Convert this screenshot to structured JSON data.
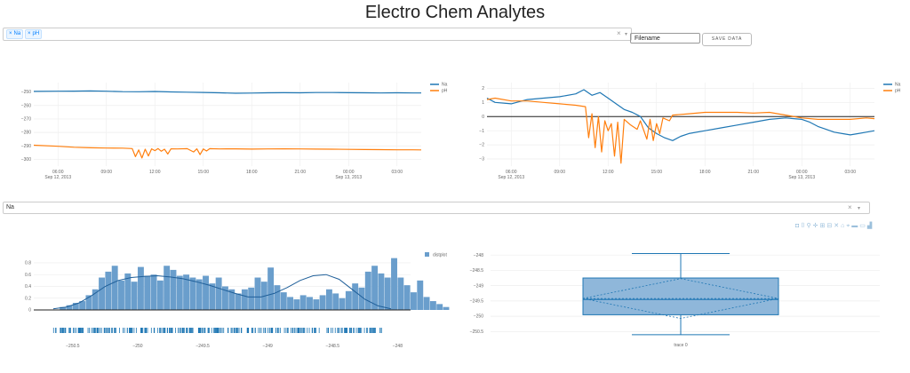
{
  "page": {
    "title": "Electro Chem Analytes",
    "analyte_select": {
      "tags": [
        "Na",
        "pH"
      ],
      "clear": "×",
      "caret": "▾"
    },
    "filename_input": {
      "value": "Filename"
    },
    "save_button": {
      "label": "SAVE DATA"
    },
    "distribution_select": {
      "value": "Na",
      "clear": "×",
      "caret": "▾"
    }
  },
  "modebar": {
    "icons": [
      {
        "name": "camera-icon",
        "glyph": "◘"
      },
      {
        "name": "save-plot-icon",
        "glyph": "⌷"
      },
      {
        "name": "zoom-icon",
        "glyph": "⚲"
      },
      {
        "name": "pan-icon",
        "glyph": "✛"
      },
      {
        "name": "zoom-in-icon",
        "glyph": "⊞"
      },
      {
        "name": "zoom-out-icon",
        "glyph": "⊟"
      },
      {
        "name": "autoscale-icon",
        "glyph": "✕"
      },
      {
        "name": "reset-axes-icon",
        "glyph": "⌂"
      },
      {
        "name": "spike-lines-icon",
        "glyph": "⌖"
      },
      {
        "name": "compare-hover-icon",
        "glyph": "▬"
      },
      {
        "name": "closest-hover-icon",
        "glyph": "▭"
      },
      {
        "name": "plotly-logo-icon",
        "glyph": "▟"
      }
    ]
  },
  "colors": {
    "blue": "#1f77b4",
    "orange": "#ff7f0e",
    "hist_fill": "#6a9ecc",
    "box_fill": "#8fb7da",
    "grid": "#eeeeee"
  },
  "chart_data": [
    {
      "id": "raw",
      "type": "line",
      "title": "",
      "x_range": [
        4.5,
        28.5
      ],
      "ylim": [
        -305,
        -243
      ],
      "y_ticks": [
        -250,
        -260,
        -270,
        -280,
        -290,
        -300
      ],
      "x_ticks": [
        {
          "x": 6,
          "label": "06:00",
          "sub": "Sep 12, 2013"
        },
        {
          "x": 9,
          "label": "09:00",
          "sub": ""
        },
        {
          "x": 12,
          "label": "12:00",
          "sub": ""
        },
        {
          "x": 15,
          "label": "15:00",
          "sub": ""
        },
        {
          "x": 18,
          "label": "18:00",
          "sub": ""
        },
        {
          "x": 21,
          "label": "21:00",
          "sub": ""
        },
        {
          "x": 24,
          "label": "00:00",
          "sub": "Sep 13, 2013"
        },
        {
          "x": 27,
          "label": "03:00",
          "sub": ""
        }
      ],
      "legend": {
        "position": "top-right",
        "entries": [
          "Na",
          "pH"
        ]
      },
      "series": [
        {
          "name": "Na",
          "color": "#1f77b4",
          "x": [
            4.5,
            6,
            7,
            8,
            9,
            10,
            11,
            12,
            13,
            14,
            15,
            16,
            17,
            18,
            19,
            20,
            21,
            22,
            23,
            24,
            25,
            26,
            27,
            28,
            28.5
          ],
          "y": [
            -249.5,
            -249.4,
            -249.3,
            -249.2,
            -249.4,
            -249.7,
            -249.8,
            -249.6,
            -249.9,
            -250.1,
            -250.3,
            -250.6,
            -250.9,
            -250.8,
            -250.6,
            -250.5,
            -250.6,
            -250.4,
            -250.4,
            -250.5,
            -250.6,
            -250.7,
            -250.6,
            -250.7,
            -250.7
          ]
        },
        {
          "name": "pH",
          "color": "#ff7f0e",
          "x": [
            4.5,
            6,
            7,
            8,
            9,
            10,
            10.6,
            10.8,
            11,
            11.2,
            11.4,
            11.6,
            11.8,
            12,
            12.2,
            12.4,
            12.6,
            12.8,
            13,
            13.4,
            14,
            14.4,
            14.6,
            14.8,
            15,
            15.2,
            15.4,
            16,
            17,
            18,
            19,
            20,
            21,
            22,
            23,
            24,
            25,
            26,
            27,
            28,
            28.5
          ],
          "y": [
            -289.5,
            -290.3,
            -291,
            -291.4,
            -291.6,
            -291.7,
            -292,
            -298,
            -293,
            -299,
            -292.5,
            -297.5,
            -292.2,
            -293.5,
            -292,
            -294,
            -292.5,
            -296,
            -292.2,
            -292.3,
            -292.1,
            -294.5,
            -292.2,
            -296.5,
            -292.3,
            -293.8,
            -292.1,
            -292.3,
            -292.2,
            -292.4,
            -292.3,
            -292.2,
            -292.3,
            -292.4,
            -292.5,
            -292.6,
            -292.7,
            -292.8,
            -292.9,
            -292.9,
            -293
          ]
        }
      ]
    },
    {
      "id": "normalized",
      "type": "line",
      "title": "",
      "x_range": [
        4.5,
        28.5
      ],
      "ylim": [
        -3.5,
        2.4
      ],
      "y_ticks": [
        2,
        1,
        0,
        -1,
        -2,
        -3
      ],
      "zero_line": true,
      "x_ticks": [
        {
          "x": 6,
          "label": "06:00",
          "sub": "Sep 12, 2013"
        },
        {
          "x": 9,
          "label": "09:00",
          "sub": ""
        },
        {
          "x": 12,
          "label": "12:00",
          "sub": ""
        },
        {
          "x": 15,
          "label": "15:00",
          "sub": ""
        },
        {
          "x": 18,
          "label": "18:00",
          "sub": ""
        },
        {
          "x": 21,
          "label": "21:00",
          "sub": ""
        },
        {
          "x": 24,
          "label": "00:00",
          "sub": "Sep 13, 2013"
        },
        {
          "x": 27,
          "label": "03:00",
          "sub": ""
        }
      ],
      "legend": {
        "position": "top-right",
        "entries": [
          "Na",
          "pH"
        ]
      },
      "series": [
        {
          "name": "Na",
          "color": "#1f77b4",
          "x": [
            4.5,
            5,
            6,
            7,
            8,
            9,
            10,
            10.5,
            11,
            11.5,
            12,
            12.5,
            13,
            13.5,
            14,
            14.5,
            15,
            15.5,
            16,
            16.5,
            17,
            18,
            19,
            20,
            21,
            22,
            23,
            24,
            24.5,
            25,
            25.5,
            26,
            26.5,
            27,
            27.5,
            28,
            28.5
          ],
          "y": [
            1.3,
            1.0,
            0.9,
            1.2,
            1.3,
            1.4,
            1.6,
            1.9,
            1.5,
            1.7,
            1.3,
            0.9,
            0.5,
            0.3,
            0.0,
            -0.8,
            -1.2,
            -1.5,
            -1.7,
            -1.4,
            -1.2,
            -1.0,
            -0.8,
            -0.6,
            -0.4,
            -0.2,
            -0.1,
            -0.2,
            -0.4,
            -0.7,
            -0.9,
            -1.1,
            -1.2,
            -1.3,
            -1.2,
            -1.1,
            -1.0
          ]
        },
        {
          "name": "pH",
          "color": "#ff7f0e",
          "x": [
            4.5,
            5,
            6,
            7,
            8,
            9,
            10,
            10.6,
            10.8,
            11,
            11.2,
            11.4,
            11.6,
            11.8,
            12,
            12.2,
            12.4,
            12.6,
            12.8,
            13,
            13.4,
            13.8,
            14,
            14.4,
            14.6,
            14.8,
            15,
            15.2,
            15.4,
            15.8,
            16,
            17,
            18,
            19,
            20,
            21,
            22,
            23,
            24,
            25,
            26,
            27,
            28,
            28.5
          ],
          "y": [
            1.2,
            1.3,
            1.1,
            1.1,
            1.0,
            0.9,
            0.8,
            0.7,
            -1.5,
            0.2,
            -2.2,
            0.0,
            -2.5,
            -0.3,
            -1.0,
            -0.5,
            -2.8,
            -0.4,
            -3.3,
            -0.2,
            -0.6,
            -0.9,
            -0.3,
            -1.6,
            -0.2,
            -1.7,
            -0.5,
            -1.2,
            -0.1,
            -0.3,
            0.1,
            0.2,
            0.3,
            0.3,
            0.3,
            0.25,
            0.3,
            0.1,
            -0.1,
            -0.2,
            -0.2,
            -0.2,
            -0.1,
            -0.15
          ]
        }
      ]
    },
    {
      "id": "distplot",
      "type": "bar",
      "title": "",
      "x_range": [
        -250.8,
        -247.9
      ],
      "ylim": [
        0,
        0.95
      ],
      "y_ticks": [
        0,
        0.2,
        0.4,
        0.6,
        0.8
      ],
      "x_ticks": [
        {
          "x": -250.5,
          "label": "−250.5"
        },
        {
          "x": -250,
          "label": "−250"
        },
        {
          "x": -249.5,
          "label": "−249.5"
        },
        {
          "x": -249,
          "label": "−249"
        },
        {
          "x": -248.5,
          "label": "−248.5"
        },
        {
          "x": -248,
          "label": "−248"
        }
      ],
      "legend": {
        "position": "top-right",
        "entries": [
          "distplot"
        ]
      },
      "bin_start": -250.6,
      "bin_width": 0.05,
      "values": [
        0.05,
        0.08,
        0.12,
        0.15,
        0.25,
        0.35,
        0.55,
        0.65,
        0.75,
        0.5,
        0.62,
        0.48,
        0.73,
        0.58,
        0.6,
        0.5,
        0.75,
        0.68,
        0.58,
        0.6,
        0.55,
        0.52,
        0.58,
        0.45,
        0.55,
        0.4,
        0.35,
        0.28,
        0.35,
        0.38,
        0.55,
        0.48,
        0.72,
        0.42,
        0.3,
        0.22,
        0.18,
        0.25,
        0.22,
        0.18,
        0.25,
        0.35,
        0.28,
        0.2,
        0.32,
        0.45,
        0.38,
        0.65,
        0.75,
        0.62,
        0.55,
        0.88,
        0.55,
        0.42,
        0.3,
        0.5,
        0.22,
        0.15,
        0.1,
        0.05
      ],
      "kde": {
        "x": [
          -250.65,
          -250.55,
          -250.45,
          -250.35,
          -250.25,
          -250.15,
          -250.05,
          -249.95,
          -249.85,
          -249.75,
          -249.65,
          -249.55,
          -249.45,
          -249.35,
          -249.25,
          -249.15,
          -249.05,
          -248.95,
          -248.85,
          -248.75,
          -248.65,
          -248.55,
          -248.45,
          -248.35,
          -248.25,
          -248.15,
          -248.05
        ],
        "y": [
          0.02,
          0.05,
          0.12,
          0.25,
          0.4,
          0.5,
          0.55,
          0.57,
          0.58,
          0.56,
          0.53,
          0.48,
          0.42,
          0.35,
          0.28,
          0.22,
          0.22,
          0.28,
          0.38,
          0.5,
          0.58,
          0.6,
          0.52,
          0.35,
          0.18,
          0.07,
          0.02
        ]
      },
      "rug": {
        "count": 300
      }
    },
    {
      "id": "box",
      "type": "box",
      "title": "",
      "ylim": [
        -250.75,
        -247.85
      ],
      "y_ticks": [
        -248,
        -248.5,
        -249,
        -249.5,
        -250,
        -250.5
      ],
      "category": "trace 0",
      "min": -250.6,
      "q1": -249.95,
      "median": -249.45,
      "q3": -248.75,
      "max": -247.95,
      "mean": -249.42,
      "sd": 0.65
    }
  ]
}
